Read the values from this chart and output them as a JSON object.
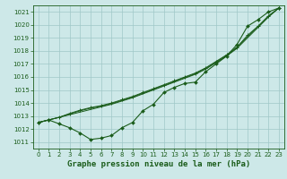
{
  "background_color": "#cde8e8",
  "grid_color": "#a0c8c8",
  "line_color": "#1a5c1a",
  "marker_color": "#1a5c1a",
  "xlabel": "Graphe pression niveau de la mer (hPa)",
  "xlim": [
    -0.5,
    23.5
  ],
  "ylim": [
    1010.5,
    1021.5
  ],
  "yticks": [
    1011,
    1012,
    1013,
    1014,
    1015,
    1016,
    1017,
    1018,
    1019,
    1020,
    1021
  ],
  "xticks": [
    0,
    1,
    2,
    3,
    4,
    5,
    6,
    7,
    8,
    9,
    10,
    11,
    12,
    13,
    14,
    15,
    16,
    17,
    18,
    19,
    20,
    21,
    22,
    23
  ],
  "curve_dip": {
    "x": [
      0,
      1,
      2,
      3,
      4,
      5,
      6,
      7,
      8,
      9,
      10,
      11,
      12,
      13,
      14,
      15,
      16,
      17,
      18,
      19,
      20,
      21,
      22,
      23
    ],
    "y": [
      1012.5,
      1012.7,
      1012.4,
      1012.1,
      1011.7,
      1011.2,
      1011.3,
      1011.5,
      1012.1,
      1012.5,
      1013.4,
      1013.9,
      1014.8,
      1015.2,
      1015.5,
      1015.6,
      1016.4,
      1017.0,
      1017.6,
      1018.5,
      1019.9,
      1020.4,
      1021.0,
      1021.3
    ]
  },
  "curve_straight1": {
    "x": [
      0,
      1,
      2,
      3,
      4,
      5,
      6,
      7,
      8,
      9,
      10,
      11,
      12,
      13,
      14,
      15,
      16,
      17,
      18,
      19,
      20,
      21,
      22,
      23
    ],
    "y": [
      1012.5,
      1012.7,
      1012.9,
      1013.1,
      1013.3,
      1013.5,
      1013.7,
      1013.9,
      1014.15,
      1014.4,
      1014.7,
      1015.0,
      1015.3,
      1015.6,
      1015.9,
      1016.2,
      1016.6,
      1017.1,
      1017.6,
      1018.2,
      1019.0,
      1019.8,
      1020.6,
      1021.3
    ]
  },
  "curve_straight2": {
    "x": [
      0,
      1,
      2,
      3,
      4,
      5,
      6,
      7,
      8,
      9,
      10,
      11,
      12,
      13,
      14,
      15,
      16,
      17,
      18,
      19,
      20,
      21,
      22,
      23
    ],
    "y": [
      1012.5,
      1012.7,
      1012.9,
      1013.15,
      1013.4,
      1013.6,
      1013.75,
      1013.95,
      1014.2,
      1014.45,
      1014.75,
      1015.05,
      1015.35,
      1015.65,
      1015.95,
      1016.25,
      1016.65,
      1017.15,
      1017.65,
      1018.25,
      1019.1,
      1019.85,
      1020.65,
      1021.3
    ]
  },
  "curve_marked": {
    "x": [
      0,
      1,
      2,
      3,
      4,
      5,
      6,
      7,
      8,
      9,
      10,
      11,
      12,
      13,
      14,
      15,
      16,
      17,
      18,
      19,
      20,
      21,
      22,
      23
    ],
    "y": [
      1012.5,
      1012.7,
      1012.9,
      1013.2,
      1013.45,
      1013.65,
      1013.8,
      1014.0,
      1014.25,
      1014.5,
      1014.8,
      1015.1,
      1015.4,
      1015.7,
      1016.0,
      1016.3,
      1016.7,
      1017.2,
      1017.7,
      1018.3,
      1019.2,
      1019.9,
      1020.7,
      1021.3
    ]
  },
  "title_fontsize": 6.5,
  "tick_fontsize": 5.0,
  "tick_color": "#1a5c1a",
  "axis_color": "#1a5c1a"
}
